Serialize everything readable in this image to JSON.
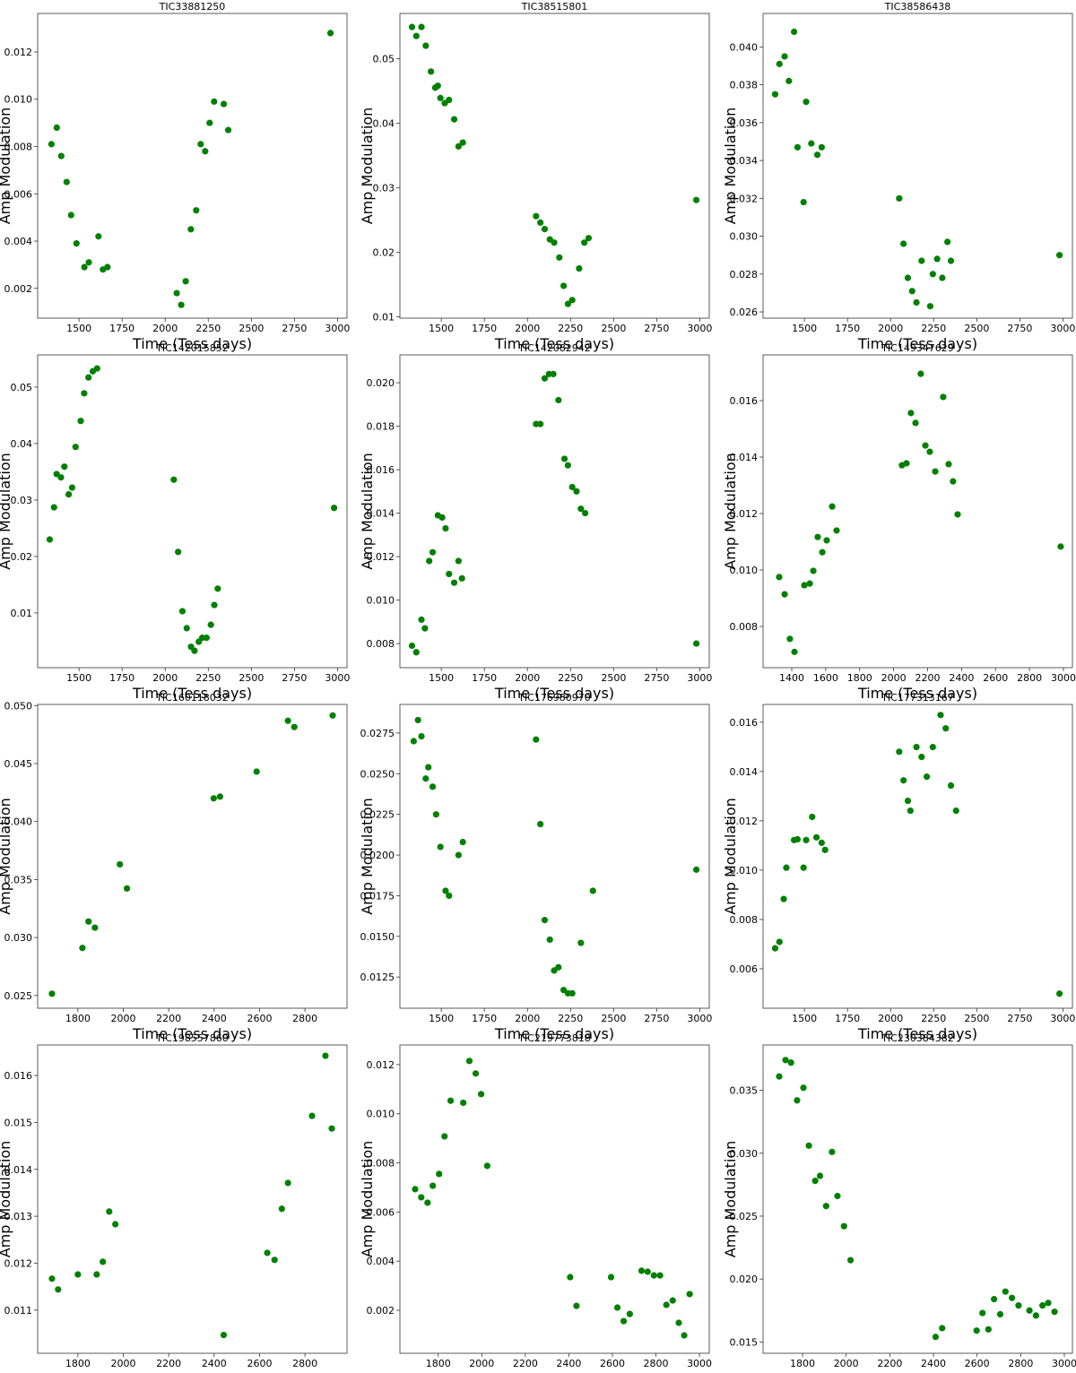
{
  "chart_data": [
    {
      "type": "scatter",
      "title": "TIC33881250",
      "xlabel": "Time (Tess days)",
      "ylabel": "Amp Modulation",
      "color": "#008000",
      "xlim": [
        1260,
        3055
      ],
      "xticks": [
        1500,
        1750,
        2000,
        2250,
        2500,
        2750,
        3000
      ],
      "ylim": [
        0.00074,
        0.01363
      ],
      "yticks": [
        0.002,
        0.004,
        0.006,
        0.008,
        {
          "value": 0.01,
          "label": "0.010"
        },
        0.012
      ],
      "x": [
        1340,
        1371,
        1397,
        1428,
        1454,
        1485,
        1531,
        1557,
        1613,
        1639,
        1665,
        2067,
        2093,
        2119,
        2149,
        2180,
        2206,
        2232,
        2258,
        2284,
        2340,
        2366,
        2959
      ],
      "values": [
        0.0081,
        0.0088,
        0.0076,
        0.0065,
        0.0051,
        0.0039,
        0.0029,
        0.0031,
        0.0042,
        0.0028,
        0.0029,
        0.0018,
        0.0013,
        0.0023,
        0.0045,
        0.0053,
        0.0081,
        0.0078,
        0.009,
        0.0099,
        0.0098,
        0.0087,
        0.0128
      ]
    },
    {
      "type": "scatter",
      "title": "TIC38515801",
      "xlabel": "Time (Tess days)",
      "ylabel": "Amp Modulation",
      "color": "#008000",
      "xlim": [
        1260,
        3055
      ],
      "xticks": [
        1500,
        1750,
        2000,
        2250,
        2500,
        2750,
        3000
      ],
      "ylim": [
        0.0098,
        0.057
      ],
      "yticks": [
        0.01,
        0.02,
        0.03,
        0.04,
        0.05
      ],
      "x": [
        1330,
        1355,
        1385,
        1410,
        1440,
        1465,
        1480,
        1495,
        1520,
        1545,
        1575,
        1600,
        1625,
        2050,
        2075,
        2100,
        2130,
        2155,
        2185,
        2210,
        2235,
        2260,
        2300,
        2330,
        2355,
        2980
      ],
      "values": [
        0.0549,
        0.0535,
        0.0549,
        0.052,
        0.048,
        0.0455,
        0.0458,
        0.0439,
        0.0431,
        0.0436,
        0.0406,
        0.0364,
        0.037,
        0.0256,
        0.0246,
        0.0236,
        0.022,
        0.0215,
        0.0192,
        0.0148,
        0.012,
        0.0126,
        0.0175,
        0.0215,
        0.0222,
        0.0281
      ]
    },
    {
      "type": "scatter",
      "title": "TIC38586438",
      "xlabel": "Time (Tess days)",
      "ylabel": "Amp Modulation",
      "color": "#008000",
      "xlim": [
        1260,
        3055
      ],
      "xticks": [
        1500,
        1750,
        2000,
        2250,
        2500,
        2750,
        3000
      ],
      "ylim": [
        0.02567,
        0.04177
      ],
      "yticks": [
        0.026,
        0.028,
        {
          "value": 0.03,
          "label": "0.030"
        },
        0.032,
        0.034,
        0.036,
        0.038,
        {
          "value": 0.04,
          "label": "0.040"
        }
      ],
      "x": [
        1330,
        1355,
        1385,
        1410,
        1440,
        1460,
        1495,
        1510,
        1540,
        1575,
        1600,
        2050,
        2075,
        2100,
        2125,
        2150,
        2180,
        2230,
        2245,
        2270,
        2300,
        2330,
        2350,
        2980
      ],
      "values": [
        0.0375,
        0.0391,
        0.0395,
        0.0382,
        0.0408,
        0.0347,
        0.0318,
        0.0371,
        0.0349,
        0.0343,
        0.0347,
        0.032,
        0.0296,
        0.0278,
        0.0271,
        0.0265,
        0.0287,
        0.0263,
        0.028,
        0.0288,
        0.0278,
        0.0297,
        0.0287,
        0.029
      ]
    },
    {
      "type": "scatter",
      "title": "TIC142015852",
      "xlabel": "Time (Tess days)",
      "ylabel": "Amp Modulation",
      "color": "#008000",
      "xlim": [
        1260,
        3055
      ],
      "xticks": [
        1500,
        1750,
        2000,
        2250,
        2500,
        2750,
        3000
      ],
      "ylim": [
        0.0003,
        0.0557
      ],
      "yticks": [
        0.01,
        0.02,
        0.03,
        0.04,
        0.05
      ],
      "x": [
        1330,
        1355,
        1370,
        1395,
        1415,
        1440,
        1460,
        1480,
        1510,
        1530,
        1555,
        1580,
        1605,
        2050,
        2075,
        2100,
        2125,
        2150,
        2170,
        2195,
        2215,
        2240,
        2265,
        2285,
        2305,
        2980
      ],
      "values": [
        0.023,
        0.0287,
        0.0346,
        0.034,
        0.0359,
        0.031,
        0.0322,
        0.0394,
        0.044,
        0.0489,
        0.0517,
        0.0528,
        0.0533,
        0.0336,
        0.0208,
        0.0103,
        0.0073,
        0.004,
        0.0033,
        0.0049,
        0.0056,
        0.0056,
        0.0079,
        0.0114,
        0.0143,
        0.0286
      ]
    },
    {
      "type": "scatter",
      "title": "TIC142082942",
      "xlabel": "Time (Tess days)",
      "ylabel": "Amp Modulation",
      "color": "#008000",
      "xlim": [
        1260,
        3055
      ],
      "xticks": [
        1500,
        1750,
        2000,
        2250,
        2500,
        2750,
        3000
      ],
      "ylim": [
        0.00689,
        0.02128
      ],
      "yticks": [
        0.008,
        {
          "value": 0.01,
          "label": "0.010"
        },
        0.012,
        0.014,
        0.016,
        0.018,
        {
          "value": 0.02,
          "label": "0.020"
        }
      ],
      "x": [
        1330,
        1355,
        1385,
        1405,
        1430,
        1450,
        1480,
        1505,
        1525,
        1545,
        1575,
        1600,
        1620,
        2050,
        2075,
        2100,
        2125,
        2150,
        2180,
        2215,
        2235,
        2260,
        2285,
        2310,
        2335,
        2980
      ],
      "values": [
        0.0079,
        0.0076,
        0.0091,
        0.0087,
        0.0118,
        0.0122,
        0.0139,
        0.0138,
        0.0133,
        0.0112,
        0.0108,
        0.0118,
        0.011,
        0.0181,
        0.0181,
        0.0202,
        0.0204,
        0.0204,
        0.0192,
        0.0165,
        0.0162,
        0.0152,
        0.015,
        0.0142,
        0.014,
        0.008
      ]
    },
    {
      "type": "scatter",
      "title": "TIC149347629",
      "xlabel": "Time (Tess days)",
      "ylabel": "Amp Modulation",
      "color": "#008000",
      "xlim": [
        1231,
        3053
      ],
      "xticks": [
        1400,
        1600,
        1800,
        2000,
        2200,
        2400,
        2600,
        2800,
        3000
      ],
      "ylim": [
        0.00654,
        0.01762
      ],
      "yticks": [
        0.008,
        {
          "value": 0.01,
          "label": "0.010"
        },
        0.012,
        0.014,
        0.016
      ],
      "x": [
        1326,
        1358,
        1389,
        1416,
        1474,
        1506,
        1527,
        1553,
        1580,
        1606,
        1638,
        1664,
        2049,
        2076,
        2102,
        2129,
        2160,
        2187,
        2213,
        2245,
        2292,
        2324,
        2350,
        2377,
        2984
      ],
      "values": [
        0.00975,
        0.00914,
        0.00756,
        0.0071,
        0.00946,
        0.00952,
        0.00997,
        0.01117,
        0.01063,
        0.01105,
        0.01225,
        0.0114,
        0.01371,
        0.01378,
        0.01556,
        0.01521,
        0.01695,
        0.01441,
        0.01419,
        0.01349,
        0.01613,
        0.01375,
        0.01314,
        0.01197,
        0.01083
      ]
    },
    {
      "type": "scatter",
      "title": "TIC160118032",
      "xlabel": "Time (Tess days)",
      "ylabel": "Amp Modulation",
      "color": "#008000",
      "xlim": [
        1623,
        2985
      ],
      "xticks": [
        1800,
        2000,
        2200,
        2400,
        2600,
        2800
      ],
      "ylim": [
        0.0239,
        0.0501
      ],
      "yticks": [
        0.025,
        {
          "value": 0.03,
          "label": "0.030"
        },
        0.035,
        {
          "value": 0.04,
          "label": "0.040"
        },
        0.045,
        {
          "value": 0.05,
          "label": "0.050"
        }
      ],
      "x": [
        1686,
        1820,
        1847,
        1875,
        1985,
        2016,
        2398,
        2426,
        2587,
        2725,
        2753,
        2922
      ],
      "values": [
        0.02515,
        0.0291,
        0.03138,
        0.03085,
        0.03631,
        0.03423,
        0.042,
        0.04215,
        0.04431,
        0.04869,
        0.04815,
        0.04915
      ]
    },
    {
      "type": "scatter",
      "title": "TIC176980970",
      "xlabel": "Time (Tess days)",
      "ylabel": "Amp Modulation",
      "color": "#008000",
      "xlim": [
        1260,
        3055
      ],
      "xticks": [
        1500,
        1750,
        2000,
        2250,
        2500,
        2750,
        3000
      ],
      "ylim": [
        0.01058,
        0.02926
      ],
      "yticks": [
        0.0125,
        {
          "value": 0.015,
          "label": "0.0150"
        },
        0.0175,
        {
          "value": 0.02,
          "label": "0.0200"
        },
        0.0225,
        {
          "value": 0.025,
          "label": "0.0250"
        },
        0.0275
      ],
      "x": [
        1340,
        1365,
        1385,
        1410,
        1425,
        1450,
        1470,
        1495,
        1525,
        1545,
        1600,
        1625,
        2050,
        2075,
        2100,
        2130,
        2155,
        2180,
        2210,
        2235,
        2260,
        2310,
        2380,
        2980
      ],
      "values": [
        0.027,
        0.0283,
        0.0273,
        0.0247,
        0.0254,
        0.0242,
        0.0225,
        0.0205,
        0.0178,
        0.0175,
        0.02,
        0.0208,
        0.0271,
        0.0219,
        0.016,
        0.0148,
        0.0129,
        0.0131,
        0.0117,
        0.0115,
        0.0115,
        0.0146,
        0.0178,
        0.0191
      ]
    },
    {
      "type": "scatter",
      "title": "TIC177313167",
      "xlabel": "Time (Tess days)",
      "ylabel": "Amp Modulation",
      "color": "#008000",
      "xlim": [
        1260,
        3055
      ],
      "xticks": [
        1500,
        1750,
        2000,
        2250,
        2500,
        2750,
        3000
      ],
      "ylim": [
        0.0044,
        0.01672
      ],
      "yticks": [
        0.006,
        0.008,
        {
          "value": 0.01,
          "label": "0.010"
        },
        0.012,
        0.014,
        0.016
      ],
      "x": [
        1330,
        1355,
        1380,
        1395,
        1440,
        1460,
        1495,
        1510,
        1545,
        1570,
        1600,
        1620,
        2050,
        2075,
        2100,
        2115,
        2150,
        2180,
        2210,
        2245,
        2290,
        2320,
        2350,
        2380,
        2980
      ],
      "values": [
        0.00683,
        0.00709,
        0.00883,
        0.0101,
        0.01122,
        0.01125,
        0.0101,
        0.01122,
        0.01216,
        0.01133,
        0.01111,
        0.01082,
        0.0148,
        0.01364,
        0.01281,
        0.01241,
        0.01499,
        0.01459,
        0.01379,
        0.01499,
        0.01629,
        0.01575,
        0.01343,
        0.01241,
        0.00499
      ]
    },
    {
      "type": "scatter",
      "title": "TIC198557860",
      "xlabel": "Time (Tess days)",
      "ylabel": "Amp Modulation",
      "color": "#008000",
      "xlim": [
        1623,
        2985
      ],
      "xticks": [
        1800,
        2000,
        2200,
        2400,
        2600,
        2800
      ],
      "ylim": [
        0.01008,
        0.01665
      ],
      "yticks": [
        0.011,
        0.012,
        0.013,
        0.014,
        0.015,
        0.016
      ],
      "x": [
        1686,
        1713,
        1800,
        1883,
        1910,
        1938,
        1965,
        2442,
        2634,
        2666,
        2698,
        2725,
        2831,
        2890,
        2918
      ],
      "values": [
        0.01167,
        0.01144,
        0.01176,
        0.01176,
        0.01203,
        0.0131,
        0.01283,
        0.01047,
        0.01222,
        0.01207,
        0.01316,
        0.01371,
        0.01514,
        0.01642,
        0.01487
      ]
    },
    {
      "type": "scatter",
      "title": "TIC219773818",
      "xlabel": "Time (Tess days)",
      "ylabel": "Amp Modulation",
      "color": "#008000",
      "xlim": [
        1624,
        3045
      ],
      "xticks": [
        1800,
        2000,
        2200,
        2400,
        2600,
        2800,
        3000
      ],
      "ylim": [
        0.00025,
        0.0128
      ],
      "yticks": [
        0.002,
        0.004,
        0.006,
        0.008,
        {
          "value": 0.01,
          "label": "0.010"
        },
        0.012
      ],
      "x": [
        1694,
        1722,
        1751,
        1775,
        1804,
        1829,
        1857,
        1915,
        1943,
        1972,
        1997,
        2025,
        2406,
        2435,
        2594,
        2623,
        2652,
        2680,
        2734,
        2762,
        2791,
        2819,
        2848,
        2877,
        2905,
        2930,
        2955
      ],
      "values": [
        0.00693,
        0.0066,
        0.00638,
        0.00707,
        0.00755,
        0.00908,
        0.01053,
        0.01045,
        0.01215,
        0.01164,
        0.0108,
        0.00788,
        0.00335,
        0.00218,
        0.00335,
        0.00211,
        0.00156,
        0.00185,
        0.00361,
        0.00357,
        0.00342,
        0.00342,
        0.00222,
        0.0024,
        0.00149,
        0.00098,
        0.00266
      ]
    },
    {
      "type": "scatter",
      "title": "TIC230384382",
      "xlabel": "Time (Tess days)",
      "ylabel": "Amp Modulation",
      "color": "#008000",
      "xlim": [
        1619,
        3037
      ],
      "xticks": [
        1800,
        2000,
        2200,
        2400,
        2600,
        2800,
        3000
      ],
      "ylim": [
        0.0141,
        0.0386
      ],
      "yticks": [
        0.015,
        {
          "value": 0.02,
          "label": "0.020"
        },
        0.025,
        {
          "value": 0.03,
          "label": "0.030"
        },
        0.035
      ],
      "x": [
        1693,
        1722,
        1747,
        1775,
        1804,
        1829,
        1858,
        1880,
        1908,
        1935,
        1960,
        1990,
        2020,
        2410,
        2440,
        2598,
        2625,
        2652,
        2678,
        2706,
        2730,
        2760,
        2790,
        2840,
        2870,
        2900,
        2926,
        2955
      ],
      "values": [
        0.0361,
        0.0374,
        0.0372,
        0.0342,
        0.0352,
        0.0306,
        0.0278,
        0.0282,
        0.0258,
        0.0301,
        0.0266,
        0.0242,
        0.0215,
        0.0154,
        0.0161,
        0.0159,
        0.0173,
        0.016,
        0.0184,
        0.0172,
        0.019,
        0.0185,
        0.0179,
        0.0175,
        0.0171,
        0.0179,
        0.0181,
        0.0174
      ]
    }
  ]
}
